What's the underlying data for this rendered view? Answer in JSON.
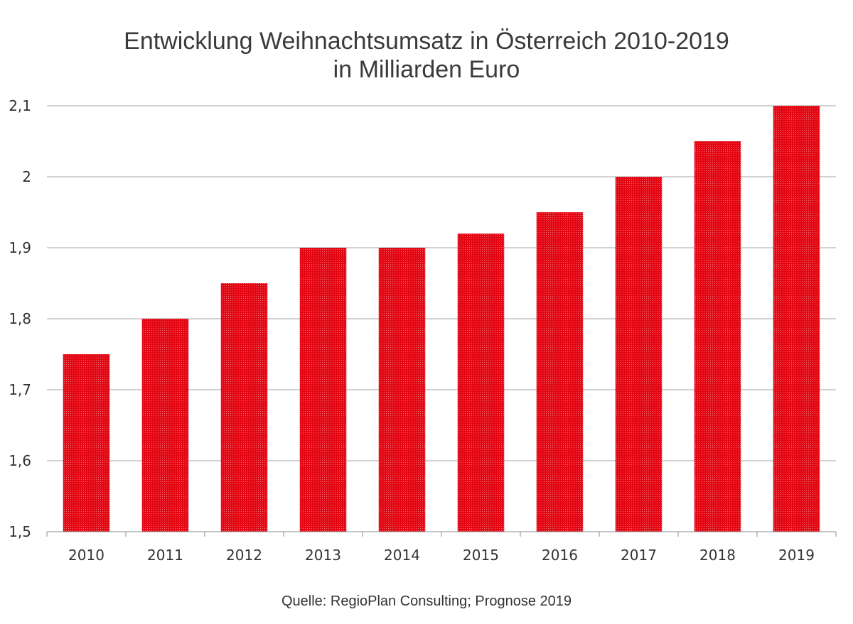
{
  "chart_data": {
    "type": "bar",
    "title": "Entwicklung Weihnachtsumsatz in Österreich 2010-2019",
    "subtitle": "in Milliarden Euro",
    "source": "Quelle: RegioPlan Consulting; Prognose 2019",
    "categories": [
      "2010",
      "2011",
      "2012",
      "2013",
      "2014",
      "2015",
      "2016",
      "2017",
      "2018",
      "2019"
    ],
    "values": [
      1.75,
      1.8,
      1.85,
      1.9,
      1.9,
      1.92,
      1.95,
      2.0,
      2.05,
      2.1
    ],
    "ylim": [
      1.5,
      2.1
    ],
    "yticks": [
      1.5,
      1.6,
      1.7,
      1.8,
      1.9,
      2.0,
      2.1
    ],
    "ytick_labels": [
      "1,5",
      "1,6",
      "1,7",
      "1,8",
      "1,9",
      "2",
      "2,1"
    ],
    "xlabel": "",
    "ylabel": "",
    "grid": true,
    "legend": "none",
    "bar_color": "#e30613"
  }
}
